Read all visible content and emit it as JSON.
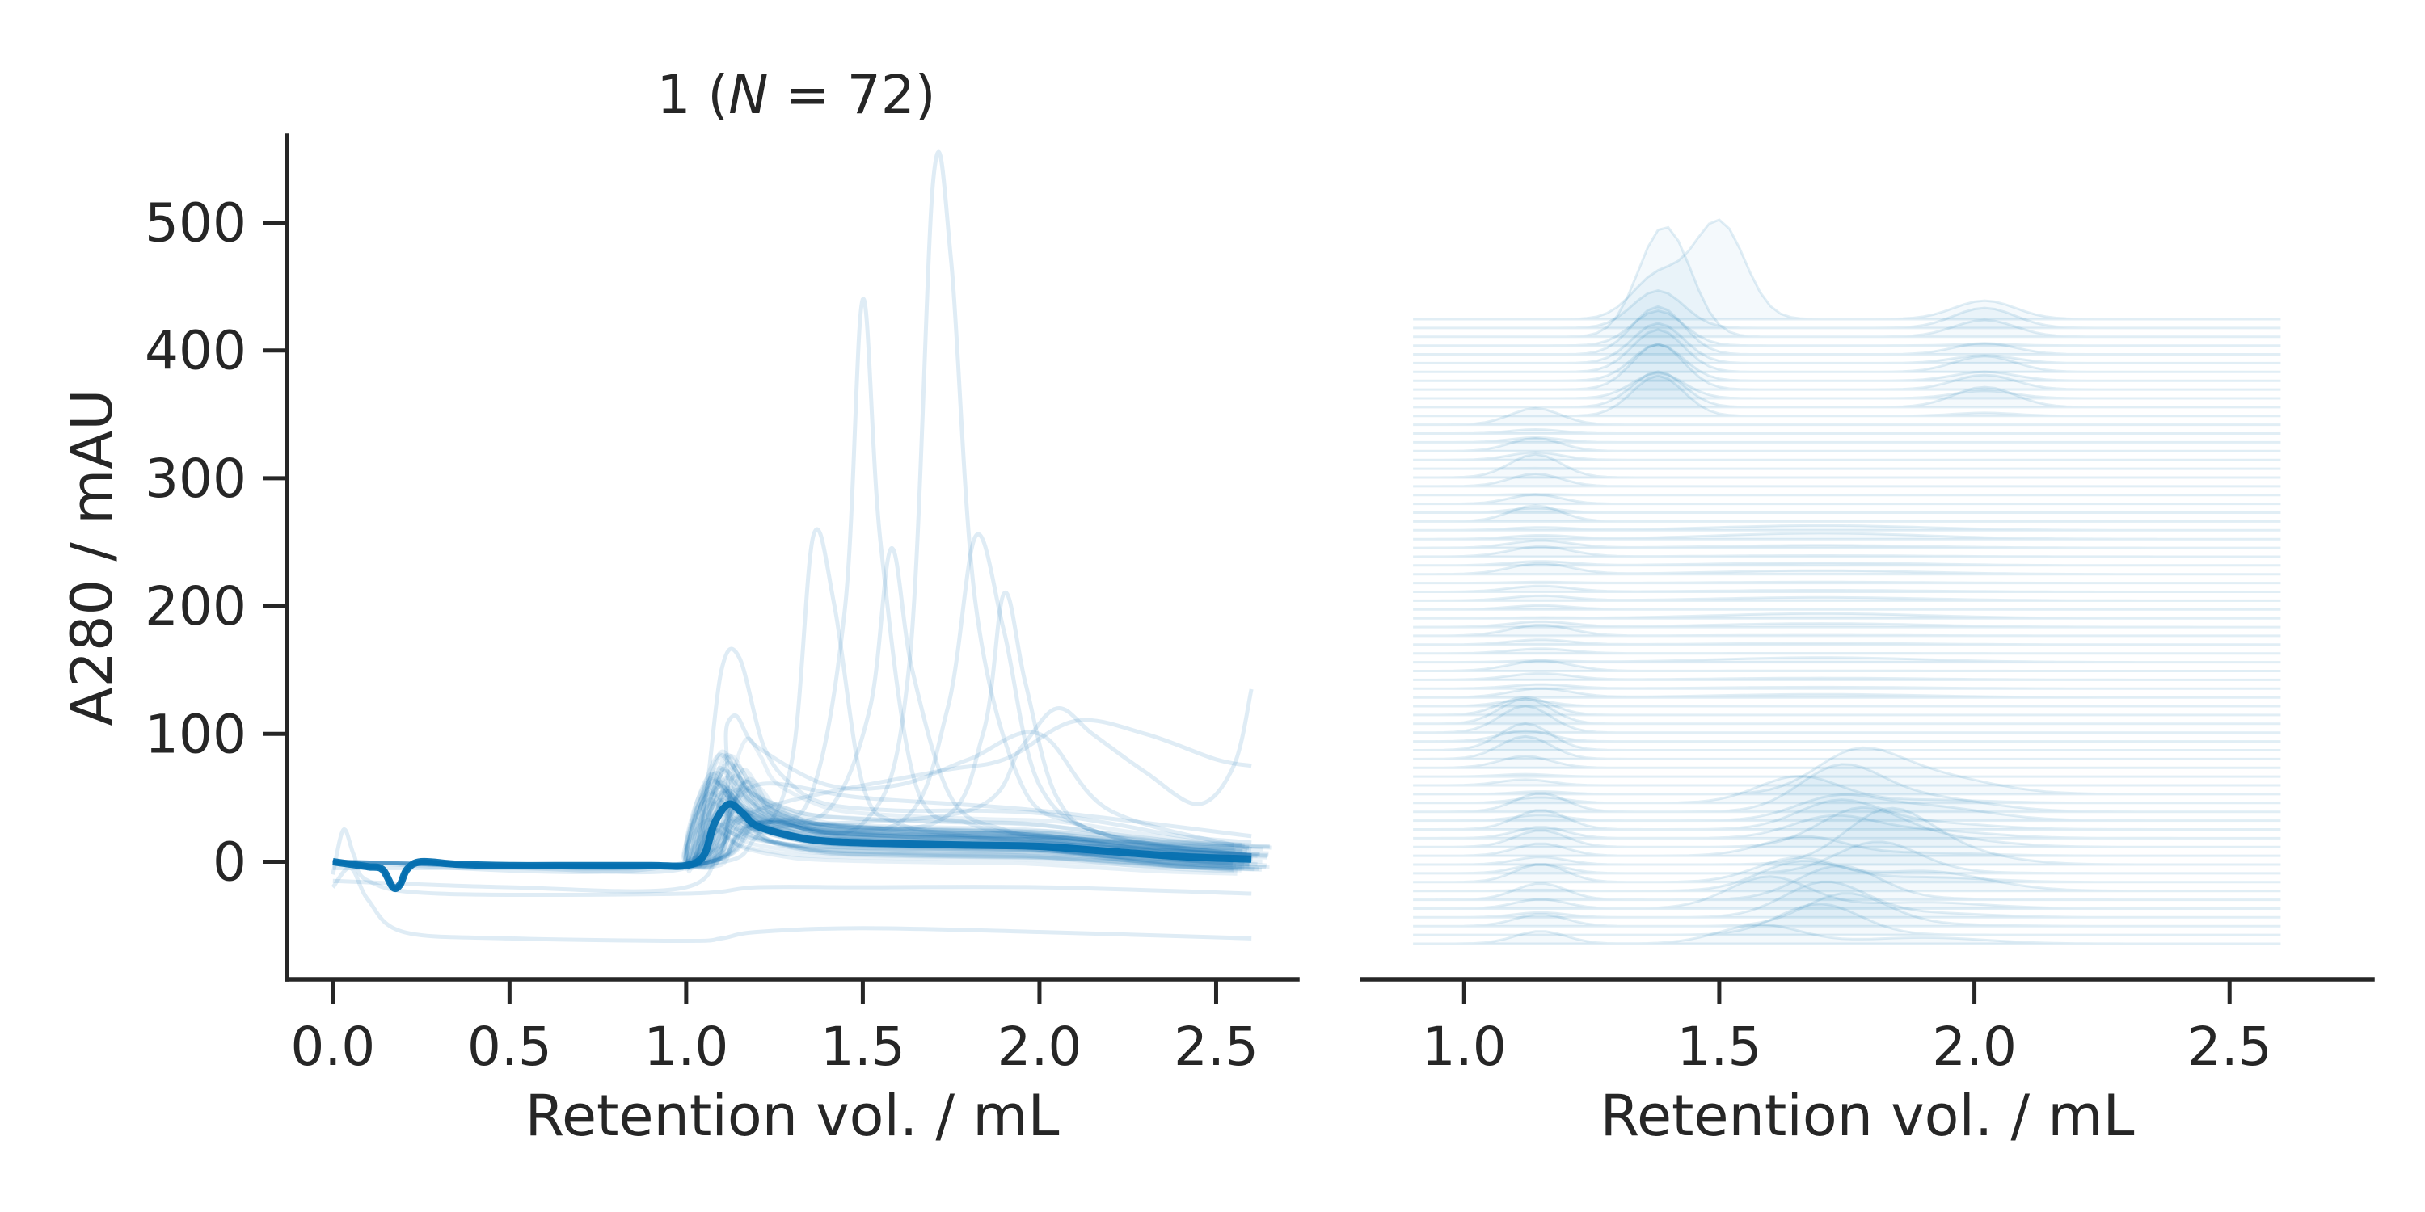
{
  "chart_data": [
    {
      "type": "line",
      "panel": "left",
      "title_prefix": "1 (",
      "title_var": "N",
      "title_eq": " = 72)",
      "n_traces": 72,
      "xlabel": "Retention vol. / mL",
      "ylabel": "A280 / mAU",
      "xlim": [
        -0.13,
        2.73
      ],
      "ylim": [
        -92,
        568
      ],
      "xticks": [
        0.0,
        0.5,
        1.0,
        1.5,
        2.0,
        2.5
      ],
      "xtick_labels": [
        "0.0",
        "0.5",
        "1.0",
        "1.5",
        "2.0",
        "2.5"
      ],
      "yticks": [
        0,
        100,
        200,
        300,
        400,
        500
      ],
      "ytick_labels": [
        "0",
        "100",
        "200",
        "300",
        "400",
        "500"
      ],
      "grid": false,
      "color": "#0570b0",
      "highlight_trace": {
        "x": [
          0.0,
          0.05,
          0.1,
          0.14,
          0.17,
          0.19,
          0.21,
          0.25,
          0.35,
          0.5,
          0.7,
          0.9,
          1.0,
          1.05,
          1.08,
          1.12,
          1.16,
          1.2,
          1.3,
          1.4,
          1.6,
          1.8,
          2.0,
          2.2,
          2.4,
          2.6
        ],
        "y": [
          0,
          -2,
          -4,
          -6,
          -20,
          -18,
          -6,
          0,
          -2,
          -3,
          -3,
          -3,
          -3,
          5,
          30,
          45,
          38,
          28,
          20,
          16,
          14,
          13,
          12,
          8,
          4,
          2
        ]
      },
      "faint_traces": [
        {
          "x": [
            0,
            0.5,
            1.0,
            1.05,
            1.1,
            1.15,
            1.22,
            1.3,
            1.4,
            1.6,
            1.8,
            2.0,
            2.2,
            2.4,
            2.6
          ],
          "y": [
            -5,
            -5,
            -5,
            40,
            150,
            160,
            90,
            60,
            45,
            40,
            40,
            38,
            30,
            20,
            15
          ]
        },
        {
          "x": [
            0,
            1.0,
            1.2,
            1.3,
            1.36,
            1.42,
            1.5,
            1.6,
            1.8,
            2.0,
            2.3,
            2.6
          ],
          "y": [
            0,
            -3,
            20,
            80,
            255,
            200,
            60,
            30,
            20,
            15,
            10,
            5
          ]
        },
        {
          "x": [
            0,
            1.0,
            1.2,
            1.35,
            1.45,
            1.5,
            1.55,
            1.65,
            1.8,
            2.0,
            2.3,
            2.6
          ],
          "y": [
            0,
            -3,
            30,
            50,
            200,
            440,
            250,
            60,
            30,
            20,
            10,
            5
          ]
        },
        {
          "x": [
            0,
            1.0,
            1.2,
            1.4,
            1.52,
            1.58,
            1.64,
            1.75,
            1.9,
            2.1,
            2.6
          ],
          "y": [
            0,
            -3,
            30,
            40,
            120,
            245,
            150,
            50,
            25,
            15,
            5
          ]
        },
        {
          "x": [
            0,
            1.0,
            1.2,
            1.5,
            1.63,
            1.7,
            1.75,
            1.82,
            1.95,
            2.1,
            2.3,
            2.6
          ],
          "y": [
            0,
            -3,
            30,
            30,
            150,
            535,
            470,
            200,
            60,
            30,
            15,
            5
          ]
        },
        {
          "x": [
            0,
            1.0,
            1.2,
            1.6,
            1.74,
            1.82,
            1.9,
            2.0,
            2.2,
            2.6
          ],
          "y": [
            0,
            -3,
            30,
            30,
            120,
            255,
            180,
            60,
            20,
            5
          ]
        },
        {
          "x": [
            0,
            1.0,
            1.2,
            1.7,
            1.84,
            1.9,
            1.96,
            2.05,
            2.2,
            2.6
          ],
          "y": [
            0,
            -3,
            30,
            30,
            100,
            210,
            140,
            50,
            20,
            5
          ]
        },
        {
          "x": [
            0,
            1.0,
            1.2,
            1.8,
            1.95,
            2.05,
            2.15,
            2.3,
            2.45,
            2.55,
            2.6
          ],
          "y": [
            0,
            -3,
            25,
            40,
            90,
            120,
            100,
            70,
            45,
            75,
            135
          ]
        },
        {
          "x": [
            0,
            1.0,
            1.2,
            1.7,
            1.9,
            2.1,
            2.3,
            2.5,
            2.6
          ],
          "y": [
            0,
            -3,
            40,
            70,
            80,
            110,
            100,
            80,
            75
          ]
        },
        {
          "x": [
            0,
            0.05,
            0.1,
            0.2,
            0.5,
            1.0,
            1.1,
            1.2,
            1.5,
            2.0,
            2.6
          ],
          "y": [
            -20,
            -5,
            -30,
            -55,
            -60,
            -62,
            -60,
            -55,
            -52,
            -55,
            -60
          ]
        },
        {
          "x": [
            0,
            0.03,
            0.06,
            0.1,
            0.3,
            1.0,
            1.2,
            1.5,
            2.0,
            2.6
          ],
          "y": [
            -10,
            25,
            5,
            -15,
            -25,
            -25,
            -20,
            -20,
            -20,
            -25
          ]
        },
        {
          "x": [
            0,
            0.5,
            1.0,
            1.1,
            1.2,
            1.5,
            2.0,
            2.6
          ],
          "y": [
            -15,
            -20,
            -20,
            20,
            60,
            50,
            40,
            20
          ]
        },
        {
          "x": [
            0,
            1.0,
            1.12,
            1.2,
            1.4,
            1.6,
            1.8,
            2.0,
            2.2,
            2.6
          ],
          "y": [
            0,
            0,
            110,
            90,
            60,
            60,
            80,
            100,
            40,
            10
          ]
        }
      ]
    },
    {
      "type": "line",
      "panel": "right",
      "subtype": "stacked ridgeline",
      "xlabel": "Retention vol. / mL",
      "xlim": [
        0.8,
        2.78
      ],
      "xticks": [
        1.0,
        1.5,
        2.0,
        2.5
      ],
      "xtick_labels": [
        "1.0",
        "1.5",
        "2.0",
        "2.5"
      ],
      "x_range_traces": [
        0.9,
        2.6
      ],
      "n_rows": 72,
      "y_axis_visible": false,
      "grid": false,
      "color": "#0570b0"
    }
  ]
}
